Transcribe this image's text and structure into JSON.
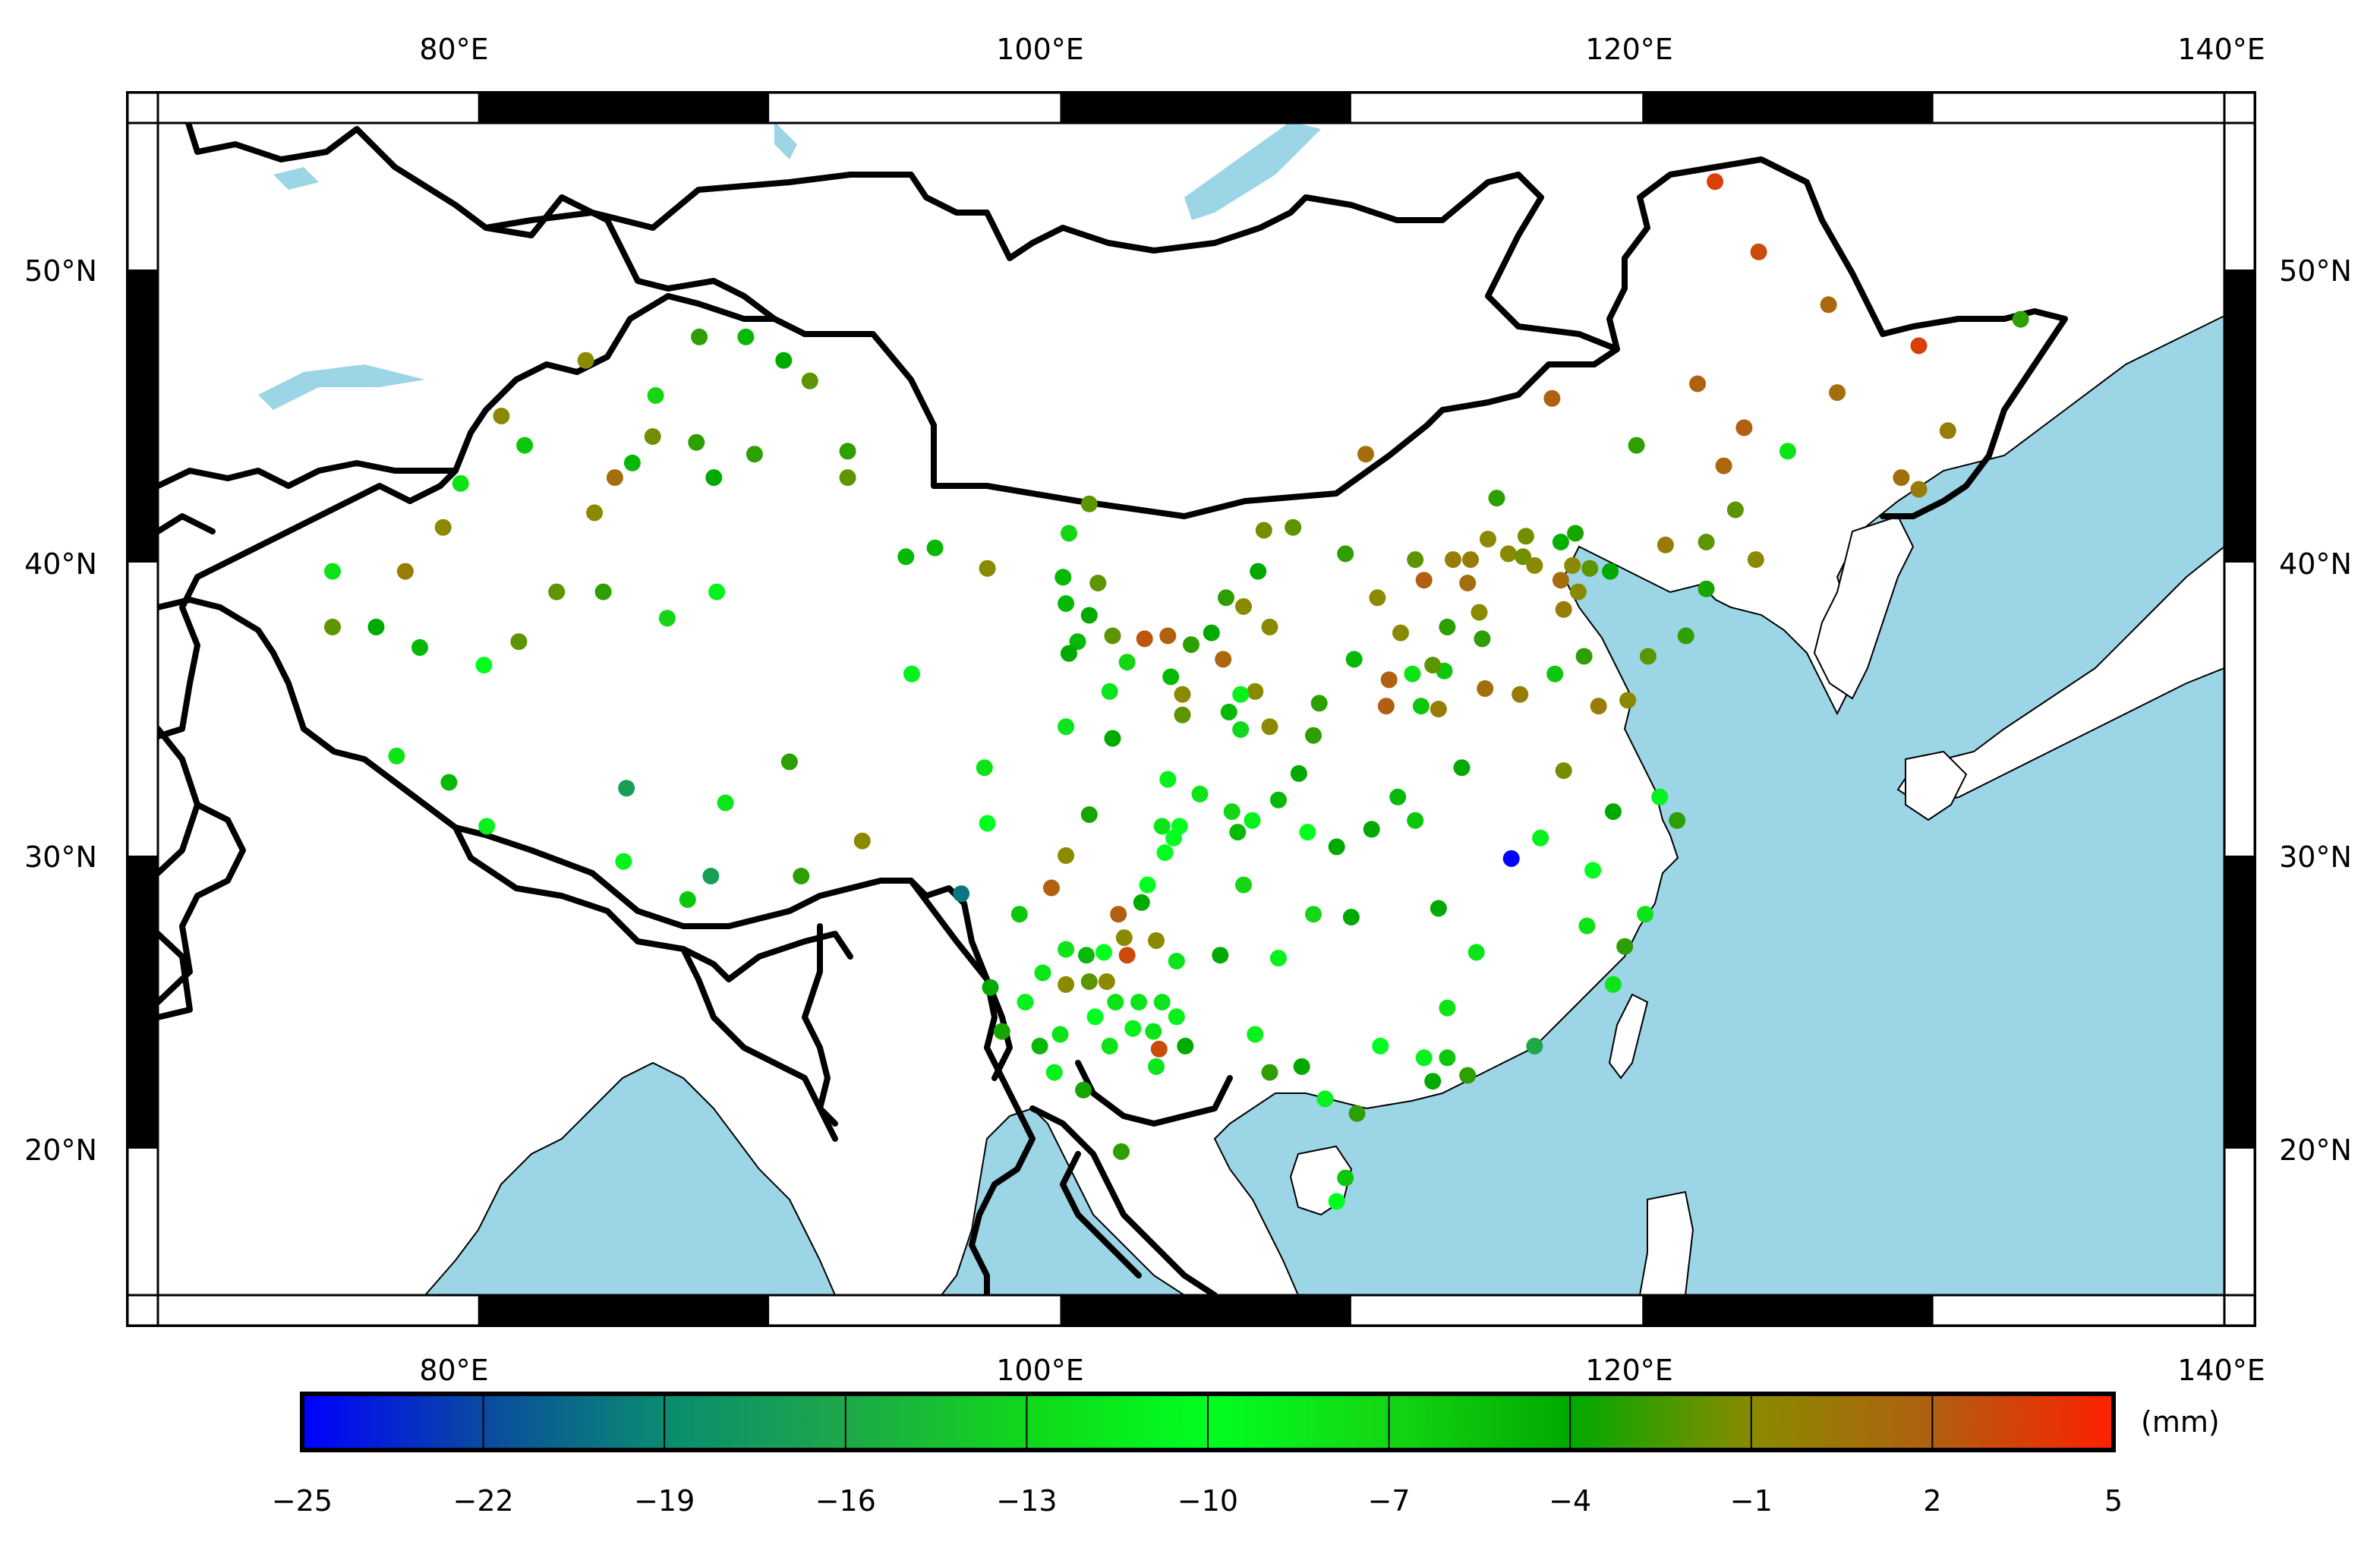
{
  "map": {
    "lon_ticks": [
      "80°E",
      "100°E",
      "120°E",
      "140°E"
    ],
    "lat_ticks": [
      "50°N",
      "40°N",
      "30°N",
      "20°N"
    ],
    "extent": {
      "lon_min": 69,
      "lon_max": 140,
      "lat_min": 15,
      "lat_max": 55
    },
    "ocean_color": "#9bd5e6",
    "land_color": "#ffffff"
  },
  "colorbar": {
    "unit": "(mm)",
    "ticks": [
      "-25",
      "-22",
      "-19",
      "-16",
      "-13",
      "-10",
      "-7",
      "-4",
      "-1",
      "2",
      "5"
    ],
    "min": -25,
    "max": 5,
    "stops": [
      "#0000ff",
      "#0a4aa0",
      "#0a8c70",
      "#1ea84a",
      "#10d81a",
      "#00ff20",
      "#14d614",
      "#00aa00",
      "#8a8a00",
      "#b06010",
      "#ff2000"
    ]
  },
  "stations": [
    {
      "lon": 122.5,
      "lat": 53.0,
      "v": 3.5
    },
    {
      "lon": 124.0,
      "lat": 50.6,
      "v": 3.0
    },
    {
      "lon": 126.4,
      "lat": 48.8,
      "v": 1.5
    },
    {
      "lon": 129.5,
      "lat": 47.4,
      "v": 3.5
    },
    {
      "lon": 133.0,
      "lat": 48.3,
      "v": -3.0
    },
    {
      "lon": 121.9,
      "lat": 46.1,
      "v": 2.0
    },
    {
      "lon": 123.5,
      "lat": 44.6,
      "v": 2.0
    },
    {
      "lon": 126.7,
      "lat": 45.8,
      "v": 1.0
    },
    {
      "lon": 125.0,
      "lat": 43.8,
      "v": -8.0
    },
    {
      "lon": 130.5,
      "lat": 44.5,
      "v": 0
    },
    {
      "lon": 116.9,
      "lat": 45.6,
      "v": 2.0
    },
    {
      "lon": 119.8,
      "lat": 44.0,
      "v": -3.0
    },
    {
      "lon": 122.8,
      "lat": 43.3,
      "v": 1.5
    },
    {
      "lon": 123.2,
      "lat": 41.8,
      "v": -2.0
    },
    {
      "lon": 128.9,
      "lat": 42.9,
      "v": 1.0
    },
    {
      "lon": 129.5,
      "lat": 42.5,
      "v": 0
    },
    {
      "lon": 110.5,
      "lat": 43.7,
      "v": 1.0
    },
    {
      "lon": 115.0,
      "lat": 42.2,
      "v": -3.0
    },
    {
      "lon": 120.8,
      "lat": 40.6,
      "v": 0
    },
    {
      "lon": 122.2,
      "lat": 40.7,
      "v": -2.0
    },
    {
      "lon": 122.2,
      "lat": 39.1,
      "v": -3.5
    },
    {
      "lon": 123.9,
      "lat": 40.1,
      "v": -1.0
    },
    {
      "lon": 121.5,
      "lat": 37.5,
      "v": -3.0
    },
    {
      "lon": 120.2,
      "lat": 36.8,
      "v": -2.0
    },
    {
      "lon": 116.0,
      "lat": 40.9,
      "v": -1.5
    },
    {
      "lon": 117.2,
      "lat": 40.7,
      "v": -4.5
    },
    {
      "lon": 117.7,
      "lat": 41.0,
      "v": -3.5
    },
    {
      "lon": 114.7,
      "lat": 40.8,
      "v": -1.0
    },
    {
      "lon": 113.5,
      "lat": 40.1,
      "v": 0
    },
    {
      "lon": 114.1,
      "lat": 40.1,
      "v": 0
    },
    {
      "lon": 115.4,
      "lat": 40.3,
      "v": -1.0
    },
    {
      "lon": 115.9,
      "lat": 40.2,
      "v": -1.5
    },
    {
      "lon": 116.3,
      "lat": 39.9,
      "v": -1.0
    },
    {
      "lon": 117.2,
      "lat": 39.4,
      "v": 1.0
    },
    {
      "lon": 117.6,
      "lat": 39.9,
      "v": -1.0
    },
    {
      "lon": 118.2,
      "lat": 39.8,
      "v": -2.0
    },
    {
      "lon": 118.9,
      "lat": 39.7,
      "v": -4.0
    },
    {
      "lon": 117.3,
      "lat": 38.4,
      "v": 0
    },
    {
      "lon": 117.8,
      "lat": 39.0,
      "v": -1.0
    },
    {
      "lon": 114.0,
      "lat": 39.3,
      "v": 1.0
    },
    {
      "lon": 114.4,
      "lat": 38.3,
      "v": -1.0
    },
    {
      "lon": 113.3,
      "lat": 37.8,
      "v": -3.0
    },
    {
      "lon": 114.5,
      "lat": 37.4,
      "v": -3.0
    },
    {
      "lon": 112.1,
      "lat": 36.2,
      "v": -8.0
    },
    {
      "lon": 113.2,
      "lat": 36.3,
      "v": -6.0
    },
    {
      "lon": 114.6,
      "lat": 35.7,
      "v": 1.0
    },
    {
      "lon": 115.8,
      "lat": 35.5,
      "v": 0
    },
    {
      "lon": 117.0,
      "lat": 36.2,
      "v": -6.0
    },
    {
      "lon": 118.0,
      "lat": 36.8,
      "v": -3.0
    },
    {
      "lon": 118.5,
      "lat": 35.1,
      "v": 0
    },
    {
      "lon": 119.5,
      "lat": 35.3,
      "v": -1.0
    },
    {
      "lon": 117.3,
      "lat": 32.9,
      "v": -1.5
    },
    {
      "lon": 113.0,
      "lat": 35.0,
      "v": 0
    },
    {
      "lon": 112.4,
      "lat": 35.1,
      "v": -6.0
    },
    {
      "lon": 111.2,
      "lat": 35.1,
      "v": 2.0
    },
    {
      "lon": 111.3,
      "lat": 36.0,
      "v": 2.0
    },
    {
      "lon": 112.8,
      "lat": 36.5,
      "v": -2.0
    },
    {
      "lon": 110.1,
      "lat": 36.7,
      "v": -5.0
    },
    {
      "lon": 108.9,
      "lat": 35.2,
      "v": -3.0
    },
    {
      "lon": 107.2,
      "lat": 34.4,
      "v": -1.0
    },
    {
      "lon": 106.7,
      "lat": 35.6,
      "v": -1.0
    },
    {
      "lon": 105.8,
      "lat": 34.9,
      "v": -5.0
    },
    {
      "lon": 105.6,
      "lat": 36.7,
      "v": 1.5
    },
    {
      "lon": 104.2,
      "lat": 35.5,
      "v": -1.0
    },
    {
      "lon": 104.2,
      "lat": 34.8,
      "v": -2.0
    },
    {
      "lon": 103.8,
      "lat": 36.1,
      "v": -5.0
    },
    {
      "lon": 102.9,
      "lat": 37.4,
      "v": 2.5
    },
    {
      "lon": 101.8,
      "lat": 37.5,
      "v": -2.0
    },
    {
      "lon": 102.3,
      "lat": 36.6,
      "v": -7.0
    },
    {
      "lon": 100.6,
      "lat": 37.3,
      "v": -5.0
    },
    {
      "lon": 101.7,
      "lat": 35.6,
      "v": -12.0
    },
    {
      "lon": 101.8,
      "lat": 34.0,
      "v": -4.0
    },
    {
      "lon": 100.2,
      "lat": 34.4,
      "v": -12.0
    },
    {
      "lon": 100.3,
      "lat": 36.9,
      "v": -4.0
    },
    {
      "lon": 101.0,
      "lat": 38.2,
      "v": -4.0
    },
    {
      "lon": 100.2,
      "lat": 38.6,
      "v": -5.0
    },
    {
      "lon": 100.1,
      "lat": 39.5,
      "v": -5.0
    },
    {
      "lon": 101.3,
      "lat": 39.3,
      "v": -2.0
    },
    {
      "lon": 100.3,
      "lat": 41.0,
      "v": -7.0
    },
    {
      "lon": 101.0,
      "lat": 42.0,
      "v": -2.0
    },
    {
      "lon": 104.5,
      "lat": 37.2,
      "v": -3.0
    },
    {
      "lon": 105.2,
      "lat": 37.6,
      "v": -4.0
    },
    {
      "lon": 105.7,
      "lat": 38.8,
      "v": -3.0
    },
    {
      "lon": 106.3,
      "lat": 38.5,
      "v": -1.0
    },
    {
      "lon": 106.8,
      "lat": 39.7,
      "v": -4.0
    },
    {
      "lon": 107.0,
      "lat": 41.1,
      "v": -1.5
    },
    {
      "lon": 108.0,
      "lat": 41.2,
      "v": -2.0
    },
    {
      "lon": 107.2,
      "lat": 37.8,
      "v": -1.0
    },
    {
      "lon": 109.8,
      "lat": 40.3,
      "v": -3.0
    },
    {
      "lon": 110.9,
      "lat": 38.8,
      "v": -1.0
    },
    {
      "lon": 111.7,
      "lat": 37.6,
      "v": -1.0
    },
    {
      "lon": 112.2,
      "lat": 40.1,
      "v": -2.0
    },
    {
      "lon": 112.5,
      "lat": 39.4,
      "v": 2.0
    },
    {
      "lon": 97.5,
      "lat": 39.8,
      "v": -1.0
    },
    {
      "lon": 95.7,
      "lat": 40.5,
      "v": -5.0
    },
    {
      "lon": 94.7,
      "lat": 40.2,
      "v": -5.0
    },
    {
      "lon": 94.9,
      "lat": 36.2,
      "v": -11.0
    },
    {
      "lon": 97.4,
      "lat": 33.0,
      "v": -8.0
    },
    {
      "lon": 97.5,
      "lat": 31.1,
      "v": -10.0
    },
    {
      "lon": 96.6,
      "lat": 28.7,
      "v": -20.0
    },
    {
      "lon": 98.6,
      "lat": 28.0,
      "v": -6.0
    },
    {
      "lon": 99.7,
      "lat": 28.9,
      "v": 2.0
    },
    {
      "lon": 100.2,
      "lat": 30.0,
      "v": -1.0
    },
    {
      "lon": 101.0,
      "lat": 31.4,
      "v": -3.5
    },
    {
      "lon": 102.0,
      "lat": 28.0,
      "v": 2.0
    },
    {
      "lon": 102.3,
      "lat": 26.6,
      "v": 3.0
    },
    {
      "lon": 103.0,
      "lat": 29.0,
      "v": -10.0
    },
    {
      "lon": 103.6,
      "lat": 30.1,
      "v": -10.0
    },
    {
      "lon": 103.9,
      "lat": 30.6,
      "v": -10.0
    },
    {
      "lon": 104.1,
      "lat": 31.0,
      "v": -10.0
    },
    {
      "lon": 103.5,
      "lat": 31.0,
      "v": -8.0
    },
    {
      "lon": 103.7,
      "lat": 32.6,
      "v": -9.0
    },
    {
      "lon": 104.8,
      "lat": 32.1,
      "v": -8.0
    },
    {
      "lon": 105.9,
      "lat": 31.5,
      "v": -7.0
    },
    {
      "lon": 106.1,
      "lat": 30.8,
      "v": -5.0
    },
    {
      "lon": 106.6,
      "lat": 31.2,
      "v": -9.0
    },
    {
      "lon": 107.5,
      "lat": 31.9,
      "v": -5.0
    },
    {
      "lon": 108.5,
      "lat": 30.8,
      "v": -10.0
    },
    {
      "lon": 108.2,
      "lat": 32.8,
      "v": -4.0
    },
    {
      "lon": 109.5,
      "lat": 30.3,
      "v": -4.0
    },
    {
      "lon": 110.7,
      "lat": 30.9,
      "v": -4.0
    },
    {
      "lon": 111.6,
      "lat": 32.0,
      "v": -5.0
    },
    {
      "lon": 112.2,
      "lat": 31.2,
      "v": -6.0
    },
    {
      "lon": 113.8,
      "lat": 33.0,
      "v": -4.0
    },
    {
      "lon": 115.5,
      "lat": 29.9,
      "v": -25.0
    },
    {
      "lon": 116.5,
      "lat": 30.6,
      "v": -9.0
    },
    {
      "lon": 118.3,
      "lat": 29.5,
      "v": -10.0
    },
    {
      "lon": 119.0,
      "lat": 31.5,
      "v": -4.0
    },
    {
      "lon": 120.6,
      "lat": 32.0,
      "v": -9.0
    },
    {
      "lon": 121.2,
      "lat": 31.2,
      "v": -3.0
    },
    {
      "lon": 120.1,
      "lat": 28.0,
      "v": -8.0
    },
    {
      "lon": 119.4,
      "lat": 26.9,
      "v": -3.0
    },
    {
      "lon": 118.1,
      "lat": 27.6,
      "v": -8.0
    },
    {
      "lon": 116.3,
      "lat": 23.5,
      "v": -16.0
    },
    {
      "lon": 119.0,
      "lat": 25.6,
      "v": -8.0
    },
    {
      "lon": 114.3,
      "lat": 26.7,
      "v": -8.0
    },
    {
      "lon": 113.0,
      "lat": 28.2,
      "v": -4.0
    },
    {
      "lon": 110.0,
      "lat": 27.9,
      "v": -4.0
    },
    {
      "lon": 107.5,
      "lat": 26.5,
      "v": -9.0
    },
    {
      "lon": 108.7,
      "lat": 28.0,
      "v": -7.0
    },
    {
      "lon": 106.3,
      "lat": 29.0,
      "v": -7.0
    },
    {
      "lon": 105.5,
      "lat": 26.6,
      "v": -4.0
    },
    {
      "lon": 104.0,
      "lat": 26.4,
      "v": -12.0
    },
    {
      "lon": 103.3,
      "lat": 27.1,
      "v": -1.0
    },
    {
      "lon": 102.8,
      "lat": 28.4,
      "v": -4.0
    },
    {
      "lon": 102.2,
      "lat": 27.2,
      "v": -1.0
    },
    {
      "lon": 101.5,
      "lat": 26.7,
      "v": -10.0
    },
    {
      "lon": 100.9,
      "lat": 26.6,
      "v": -5.0
    },
    {
      "lon": 100.2,
      "lat": 26.8,
      "v": -8.0
    },
    {
      "lon": 99.4,
      "lat": 26.0,
      "v": -12.0
    },
    {
      "lon": 100.2,
      "lat": 25.6,
      "v": -1.0
    },
    {
      "lon": 101.0,
      "lat": 25.7,
      "v": -2.0
    },
    {
      "lon": 101.6,
      "lat": 25.7,
      "v": -1.0
    },
    {
      "lon": 101.9,
      "lat": 25.0,
      "v": -8.0
    },
    {
      "lon": 102.7,
      "lat": 25.0,
      "v": -12.0
    },
    {
      "lon": 103.5,
      "lat": 25.0,
      "v": -12.0
    },
    {
      "lon": 104.0,
      "lat": 24.5,
      "v": -9.0
    },
    {
      "lon": 103.2,
      "lat": 24.0,
      "v": -8.0
    },
    {
      "lon": 102.5,
      "lat": 24.1,
      "v": -9.0
    },
    {
      "lon": 101.2,
      "lat": 24.5,
      "v": -10.0
    },
    {
      "lon": 100.0,
      "lat": 23.9,
      "v": -8.0
    },
    {
      "lon": 99.3,
      "lat": 23.5,
      "v": -5.0
    },
    {
      "lon": 98.0,
      "lat": 24.0,
      "v": -3.5
    },
    {
      "lon": 97.6,
      "lat": 25.5,
      "v": -4.0
    },
    {
      "lon": 98.8,
      "lat": 25.0,
      "v": -11.0
    },
    {
      "lon": 99.8,
      "lat": 22.6,
      "v": -11.0
    },
    {
      "lon": 100.8,
      "lat": 22.0,
      "v": -3.5
    },
    {
      "lon": 101.7,
      "lat": 23.5,
      "v": -8.0
    },
    {
      "lon": 103.4,
      "lat": 23.4,
      "v": 3.0
    },
    {
      "lon": 103.3,
      "lat": 22.8,
      "v": -12.0
    },
    {
      "lon": 104.3,
      "lat": 23.5,
      "v": -4.0
    },
    {
      "lon": 106.7,
      "lat": 23.9,
      "v": -9.0
    },
    {
      "lon": 107.2,
      "lat": 22.6,
      "v": -3.0
    },
    {
      "lon": 108.3,
      "lat": 22.8,
      "v": -4.0
    },
    {
      "lon": 109.1,
      "lat": 21.7,
      "v": -9.0
    },
    {
      "lon": 110.2,
      "lat": 21.2,
      "v": -3.0
    },
    {
      "lon": 111.0,
      "lat": 23.5,
      "v": -10.0
    },
    {
      "lon": 112.5,
      "lat": 23.1,
      "v": -9.0
    },
    {
      "lon": 112.8,
      "lat": 22.3,
      "v": -4.0
    },
    {
      "lon": 113.3,
      "lat": 23.1,
      "v": -6.0
    },
    {
      "lon": 113.3,
      "lat": 24.8,
      "v": -8.0
    },
    {
      "lon": 114.0,
      "lat": 22.5,
      "v": -3.0
    },
    {
      "lon": 109.8,
      "lat": 19.0,
      "v": -6.0
    },
    {
      "lon": 109.5,
      "lat": 18.2,
      "v": -10.0
    },
    {
      "lon": 102.1,
      "lat": 19.9,
      "v": -3.0
    },
    {
      "lon": 106.2,
      "lat": 35.5,
      "v": -9.0
    },
    {
      "lon": 106.2,
      "lat": 34.3,
      "v": -13.0
    },
    {
      "lon": 108.7,
      "lat": 34.1,
      "v": -3.0
    },
    {
      "lon": 103.7,
      "lat": 37.5,
      "v": 2.0
    },
    {
      "lon": 83.7,
      "lat": 46.9,
      "v": -1.0
    },
    {
      "lon": 80.8,
      "lat": 45.0,
      "v": -1.0
    },
    {
      "lon": 81.6,
      "lat": 44.0,
      "v": -6.0
    },
    {
      "lon": 79.4,
      "lat": 42.7,
      "v": -8.0
    },
    {
      "lon": 78.8,
      "lat": 41.2,
      "v": -1.0
    },
    {
      "lon": 77.5,
      "lat": 39.7,
      "v": 0
    },
    {
      "lon": 75.0,
      "lat": 39.7,
      "v": -8.0
    },
    {
      "lon": 75.0,
      "lat": 37.8,
      "v": -2.0
    },
    {
      "lon": 76.5,
      "lat": 37.8,
      "v": -4.0
    },
    {
      "lon": 78.0,
      "lat": 37.1,
      "v": -5.0
    },
    {
      "lon": 80.2,
      "lat": 36.5,
      "v": -10.0
    },
    {
      "lon": 81.4,
      "lat": 37.3,
      "v": -2.0
    },
    {
      "lon": 82.7,
      "lat": 39.0,
      "v": -2.0
    },
    {
      "lon": 84.0,
      "lat": 41.7,
      "v": -1.0
    },
    {
      "lon": 84.7,
      "lat": 42.9,
      "v": 1.0
    },
    {
      "lon": 86.0,
      "lat": 44.3,
      "v": -1.5
    },
    {
      "lon": 87.5,
      "lat": 44.1,
      "v": -3.0
    },
    {
      "lon": 88.1,
      "lat": 42.9,
      "v": -4.0
    },
    {
      "lon": 89.5,
      "lat": 43.7,
      "v": -3.0
    },
    {
      "lon": 87.6,
      "lat": 47.7,
      "v": -3.0
    },
    {
      "lon": 89.2,
      "lat": 47.7,
      "v": -5.0
    },
    {
      "lon": 90.5,
      "lat": 46.9,
      "v": -4.0
    },
    {
      "lon": 91.4,
      "lat": 46.2,
      "v": -2.0
    },
    {
      "lon": 92.7,
      "lat": 43.8,
      "v": -3.0
    },
    {
      "lon": 92.7,
      "lat": 42.9,
      "v": -2.0
    },
    {
      "lon": 86.1,
      "lat": 45.7,
      "v": -7.0
    },
    {
      "lon": 85.3,
      "lat": 43.4,
      "v": -5.0
    },
    {
      "lon": 84.3,
      "lat": 39.0,
      "v": -3.0
    },
    {
      "lon": 86.5,
      "lat": 38.1,
      "v": -7.0
    },
    {
      "lon": 88.2,
      "lat": 39.0,
      "v": -9.0
    },
    {
      "lon": 77.2,
      "lat": 33.4,
      "v": -8.0
    },
    {
      "lon": 79.0,
      "lat": 32.5,
      "v": -5.0
    },
    {
      "lon": 80.3,
      "lat": 31.0,
      "v": -9.0
    },
    {
      "lon": 85.1,
      "lat": 32.3,
      "v": -17.0
    },
    {
      "lon": 85.0,
      "lat": 29.8,
      "v": -11.0
    },
    {
      "lon": 87.2,
      "lat": 28.5,
      "v": -6.0
    },
    {
      "lon": 88.0,
      "lat": 29.3,
      "v": -17.0
    },
    {
      "lon": 88.5,
      "lat": 31.8,
      "v": -12.0
    },
    {
      "lon": 90.7,
      "lat": 33.2,
      "v": -3.0
    },
    {
      "lon": 91.1,
      "lat": 29.3,
      "v": -3.0
    },
    {
      "lon": 93.2,
      "lat": 30.5,
      "v": -1.0
    }
  ]
}
